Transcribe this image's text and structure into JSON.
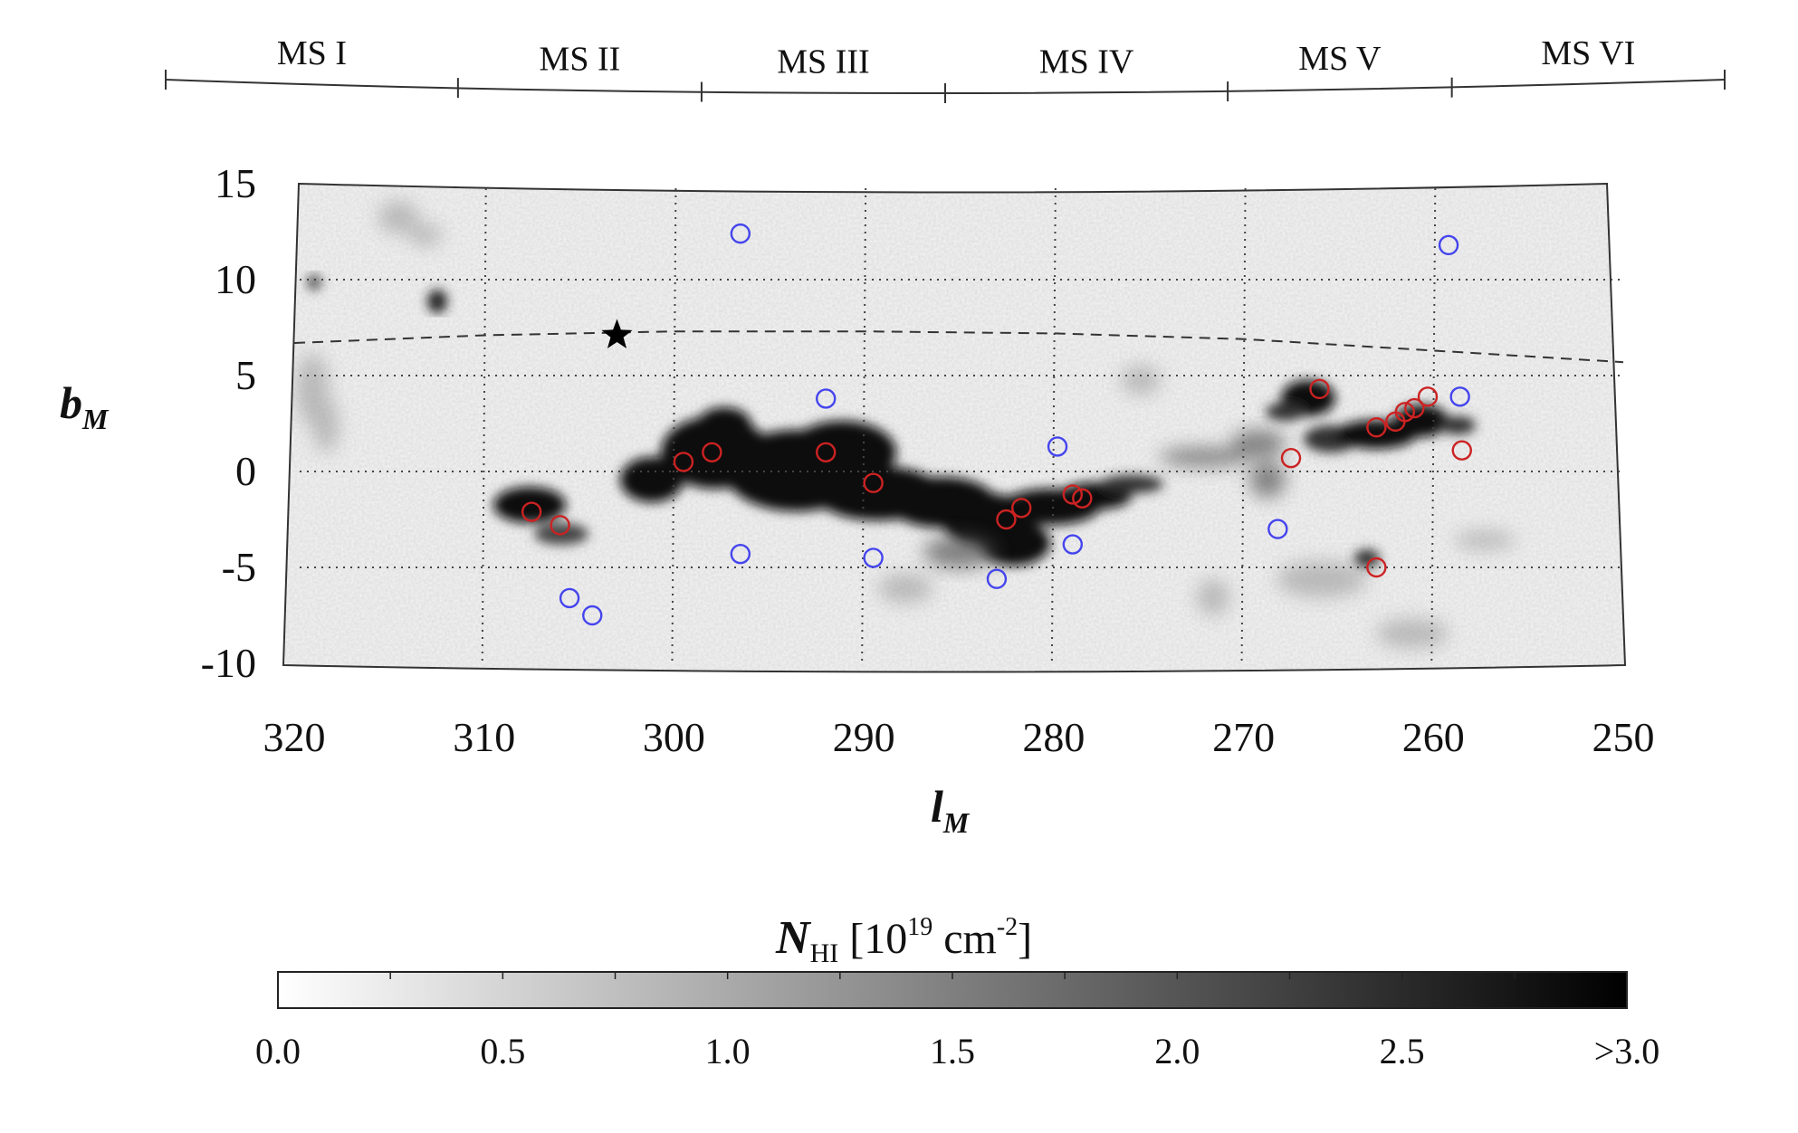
{
  "chart_data": {
    "type": "scatter",
    "title": "",
    "xlabel": {
      "main": "l",
      "sub": "M"
    },
    "ylabel": {
      "main": "b",
      "sub": "M"
    },
    "xlim": [
      320,
      250
    ],
    "ylim": [
      -10,
      15
    ],
    "x_ticks": [
      "320",
      "310",
      "300",
      "290",
      "280",
      "270",
      "260",
      "250"
    ],
    "y_ticks": [
      "15",
      "10",
      "5",
      "0",
      "-5",
      "-10"
    ],
    "grid": true,
    "background_map": "HI column density (grayscale)",
    "regions": [
      {
        "label": "MS I",
        "from": 325,
        "to": 310
      },
      {
        "label": "MS II",
        "from": 310,
        "to": 297.5
      },
      {
        "label": "MS III",
        "from": 297.5,
        "to": 285
      },
      {
        "label": "MS IV",
        "from": 285,
        "to": 270.5
      },
      {
        "label": "MS V",
        "from": 270.5,
        "to": 259
      },
      {
        "label": "MS VI",
        "from": 259,
        "to": 245
      }
    ],
    "series": [
      {
        "marker": "open-circle",
        "color": "#cc2222",
        "points": [
          [
            307.5,
            -2.1
          ],
          [
            306,
            -2.8
          ],
          [
            299.5,
            0.5
          ],
          [
            298,
            1.0
          ],
          [
            292,
            1.0
          ],
          [
            289.5,
            -0.6
          ],
          [
            282.5,
            -2.5
          ],
          [
            281.7,
            -1.9
          ],
          [
            279,
            -1.2
          ],
          [
            278.5,
            -1.4
          ],
          [
            267.5,
            0.7
          ],
          [
            266,
            4.3
          ],
          [
            263,
            2.3
          ],
          [
            262,
            2.6
          ],
          [
            261.5,
            3.1
          ],
          [
            261,
            3.3
          ],
          [
            260.3,
            3.9
          ],
          [
            258.5,
            1.1
          ],
          [
            263,
            -5.0
          ]
        ]
      },
      {
        "marker": "open-circle",
        "color": "#4444ee",
        "points": [
          [
            296.5,
            12.4
          ],
          [
            292,
            3.8
          ],
          [
            296.5,
            -4.3
          ],
          [
            289.5,
            -4.5
          ],
          [
            305.5,
            -6.6
          ],
          [
            304.3,
            -7.5
          ],
          [
            283,
            -5.6
          ],
          [
            279.8,
            1.3
          ],
          [
            279,
            -3.8
          ],
          [
            268.2,
            -3.0
          ],
          [
            259.2,
            11.8
          ],
          [
            258.6,
            3.9
          ]
        ]
      },
      {
        "marker": "star",
        "color": "#000000",
        "points": [
          [
            303,
            7.1
          ]
        ]
      }
    ],
    "dashed_curve": [
      [
        320,
        6.7
      ],
      [
        310,
        7.1
      ],
      [
        300,
        7.3
      ],
      [
        290,
        7.3
      ],
      [
        280,
        7.2
      ],
      [
        270,
        6.9
      ],
      [
        260,
        6.3
      ],
      [
        250,
        5.7
      ]
    ],
    "colorbar": {
      "title": {
        "symbol": "N",
        "symbol_sub": "HI",
        "units_pre": "[10",
        "exponent": "19",
        "units_mid": " cm",
        "units_exp": "-2",
        "units_post": "]"
      },
      "min": 0.0,
      "max": 3.0,
      "tick_values": [
        0.0,
        0.5,
        1.0,
        1.5,
        2.0,
        2.5,
        3.0
      ],
      "tick_labels": [
        "0.0",
        "0.5",
        "1.0",
        "1.5",
        "2.0",
        "2.5",
        ">3.0"
      ],
      "color_low": "#ffffff",
      "color_high": "#000000"
    }
  }
}
